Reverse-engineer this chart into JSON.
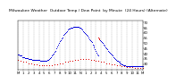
{
  "title": "Milwaukee Weather  Outdoor Temp / Dew Point  by Minute  (24 Hours) (Alternate)",
  "title_fontsize": 3.2,
  "title_color": "#000000",
  "background_color": "#ffffff",
  "plot_bg_color": "#ffffff",
  "grid_color": "#999999",
  "xlim": [
    0,
    1440
  ],
  "ylim": [
    24,
    72
  ],
  "ytick_values": [
    30,
    35,
    40,
    45,
    50,
    55,
    60,
    65,
    70
  ],
  "xtick_labels": [
    "M",
    "1",
    "2",
    "3",
    "4",
    "5",
    "6",
    "7",
    "8",
    "9",
    "10",
    "11",
    "N",
    "1",
    "2",
    "3",
    "4",
    "5",
    "6",
    "7",
    "8",
    "9",
    "10",
    "11",
    "M"
  ],
  "xtick_positions": [
    0,
    60,
    120,
    180,
    240,
    300,
    360,
    420,
    480,
    540,
    600,
    660,
    720,
    780,
    840,
    900,
    960,
    1020,
    1080,
    1140,
    1200,
    1260,
    1320,
    1380,
    1440
  ],
  "temp_color": "#0000dd",
  "dew_color": "#dd0000",
  "temp_data": [
    [
      0,
      38
    ],
    [
      10,
      38
    ],
    [
      20,
      37
    ],
    [
      30,
      37
    ],
    [
      40,
      37
    ],
    [
      50,
      36
    ],
    [
      60,
      36
    ],
    [
      70,
      36
    ],
    [
      80,
      35
    ],
    [
      90,
      35
    ],
    [
      100,
      35
    ],
    [
      110,
      35
    ],
    [
      120,
      34
    ],
    [
      130,
      34
    ],
    [
      140,
      34
    ],
    [
      150,
      34
    ],
    [
      160,
      33
    ],
    [
      170,
      33
    ],
    [
      180,
      33
    ],
    [
      190,
      33
    ],
    [
      200,
      33
    ],
    [
      210,
      33
    ],
    [
      220,
      33
    ],
    [
      230,
      33
    ],
    [
      240,
      33
    ],
    [
      250,
      32
    ],
    [
      260,
      32
    ],
    [
      270,
      32
    ],
    [
      280,
      32
    ],
    [
      290,
      32
    ],
    [
      300,
      32
    ],
    [
      310,
      32
    ],
    [
      320,
      32
    ],
    [
      330,
      32
    ],
    [
      340,
      33
    ],
    [
      350,
      33
    ],
    [
      360,
      34
    ],
    [
      370,
      35
    ],
    [
      380,
      36
    ],
    [
      390,
      37
    ],
    [
      400,
      38
    ],
    [
      410,
      39
    ],
    [
      420,
      41
    ],
    [
      430,
      42
    ],
    [
      440,
      44
    ],
    [
      450,
      46
    ],
    [
      460,
      48
    ],
    [
      470,
      49
    ],
    [
      480,
      51
    ],
    [
      490,
      52
    ],
    [
      500,
      54
    ],
    [
      510,
      55
    ],
    [
      520,
      57
    ],
    [
      530,
      58
    ],
    [
      540,
      59
    ],
    [
      550,
      60
    ],
    [
      560,
      61
    ],
    [
      570,
      62
    ],
    [
      580,
      62
    ],
    [
      590,
      63
    ],
    [
      600,
      63
    ],
    [
      610,
      64
    ],
    [
      620,
      64
    ],
    [
      630,
      64
    ],
    [
      640,
      65
    ],
    [
      650,
      65
    ],
    [
      660,
      65
    ],
    [
      670,
      65
    ],
    [
      680,
      65
    ],
    [
      690,
      65
    ],
    [
      700,
      65
    ],
    [
      710,
      64
    ],
    [
      720,
      64
    ],
    [
      730,
      63
    ],
    [
      740,
      62
    ],
    [
      750,
      61
    ],
    [
      760,
      60
    ],
    [
      770,
      59
    ],
    [
      780,
      58
    ],
    [
      790,
      57
    ],
    [
      800,
      56
    ],
    [
      810,
      55
    ],
    [
      820,
      53
    ],
    [
      830,
      52
    ],
    [
      840,
      51
    ],
    [
      850,
      50
    ],
    [
      860,
      48
    ],
    [
      870,
      47
    ],
    [
      880,
      45
    ],
    [
      890,
      43
    ],
    [
      900,
      42
    ],
    [
      910,
      40
    ],
    [
      920,
      38
    ],
    [
      930,
      37
    ],
    [
      940,
      53
    ],
    [
      950,
      52
    ],
    [
      960,
      51
    ],
    [
      970,
      50
    ],
    [
      980,
      49
    ],
    [
      990,
      48
    ],
    [
      1000,
      47
    ],
    [
      1010,
      45
    ],
    [
      1020,
      44
    ],
    [
      1030,
      43
    ],
    [
      1040,
      42
    ],
    [
      1050,
      41
    ],
    [
      1060,
      40
    ],
    [
      1070,
      39
    ],
    [
      1080,
      38
    ],
    [
      1090,
      37
    ],
    [
      1100,
      36
    ],
    [
      1110,
      35
    ],
    [
      1120,
      34
    ],
    [
      1130,
      33
    ],
    [
      1140,
      32
    ],
    [
      1150,
      32
    ],
    [
      1160,
      31
    ],
    [
      1170,
      31
    ],
    [
      1180,
      30
    ],
    [
      1190,
      30
    ],
    [
      1200,
      29
    ],
    [
      1210,
      29
    ],
    [
      1220,
      28
    ],
    [
      1230,
      28
    ],
    [
      1240,
      28
    ],
    [
      1250,
      27
    ],
    [
      1260,
      27
    ],
    [
      1270,
      27
    ],
    [
      1280,
      27
    ],
    [
      1290,
      27
    ],
    [
      1300,
      27
    ],
    [
      1310,
      27
    ],
    [
      1320,
      27
    ],
    [
      1330,
      27
    ],
    [
      1340,
      27
    ],
    [
      1350,
      27
    ],
    [
      1360,
      27
    ],
    [
      1370,
      27
    ],
    [
      1380,
      27
    ],
    [
      1390,
      27
    ],
    [
      1400,
      27
    ],
    [
      1410,
      27
    ],
    [
      1420,
      27
    ],
    [
      1430,
      27
    ],
    [
      1440,
      27
    ]
  ],
  "dew_data": [
    [
      0,
      33
    ],
    [
      30,
      32
    ],
    [
      60,
      31
    ],
    [
      90,
      31
    ],
    [
      120,
      30
    ],
    [
      150,
      30
    ],
    [
      180,
      29
    ],
    [
      210,
      29
    ],
    [
      240,
      28
    ],
    [
      270,
      28
    ],
    [
      300,
      28
    ],
    [
      330,
      28
    ],
    [
      360,
      28
    ],
    [
      390,
      28
    ],
    [
      420,
      29
    ],
    [
      450,
      29
    ],
    [
      480,
      30
    ],
    [
      510,
      30
    ],
    [
      540,
      31
    ],
    [
      570,
      31
    ],
    [
      600,
      32
    ],
    [
      630,
      32
    ],
    [
      660,
      33
    ],
    [
      690,
      33
    ],
    [
      720,
      34
    ],
    [
      750,
      34
    ],
    [
      780,
      34
    ],
    [
      810,
      34
    ],
    [
      840,
      33
    ],
    [
      870,
      33
    ],
    [
      900,
      32
    ],
    [
      930,
      32
    ],
    [
      960,
      31
    ],
    [
      990,
      31
    ],
    [
      1020,
      30
    ],
    [
      1050,
      30
    ],
    [
      1080,
      29
    ],
    [
      1110,
      29
    ],
    [
      1140,
      28
    ],
    [
      1170,
      28
    ],
    [
      1200,
      27
    ],
    [
      1230,
      27
    ],
    [
      1260,
      26
    ],
    [
      1290,
      26
    ],
    [
      1320,
      26
    ],
    [
      1350,
      25
    ],
    [
      1380,
      25
    ],
    [
      1410,
      25
    ],
    [
      1440,
      25
    ],
    [
      930,
      55
    ],
    [
      935,
      54
    ],
    [
      940,
      53
    ]
  ],
  "marker_size": 0.5,
  "tick_fontsize": 2.8
}
